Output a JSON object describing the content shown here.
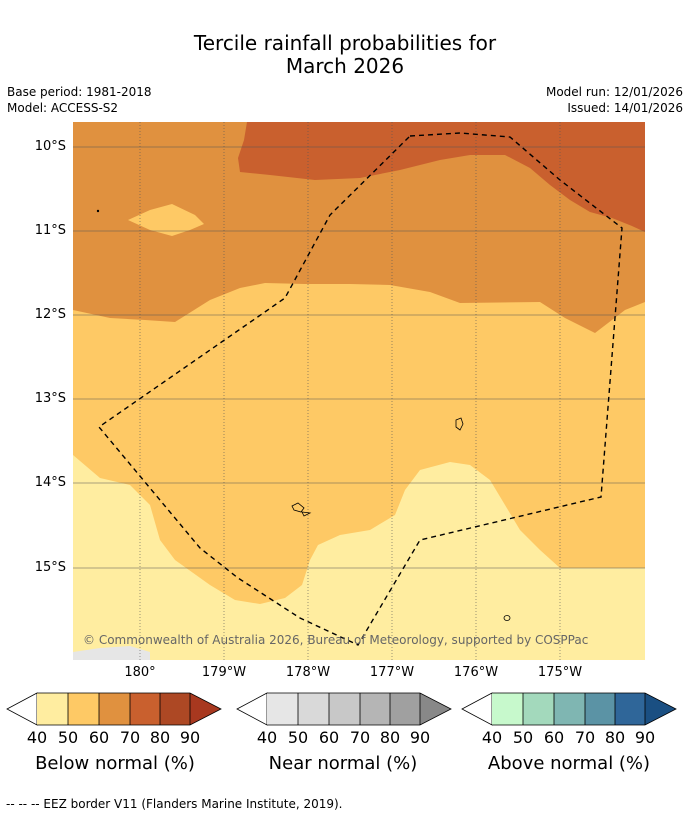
{
  "title_line1": "Tercile rainfall probabilities for",
  "title_line2": "March 2026",
  "base_period": "Base period: 1981-2018",
  "model": "Model: ACCESS-S2",
  "model_run": "Model run: 12/01/2026",
  "issued": "Issued: 14/01/2026",
  "lat_labels": [
    "10°S",
    "11°S",
    "12°S",
    "13°S",
    "14°S",
    "15°S"
  ],
  "lon_labels": [
    "180°",
    "179°W",
    "178°W",
    "177°W",
    "176°W",
    "175°W"
  ],
  "copyright": "© Commonwealth of Australia 2026, Bureau of Meteorology, supported by COSPPac",
  "colorbars": [
    {
      "title": "Below normal (%)",
      "ticks": [
        "40",
        "50",
        "60",
        "70",
        "80",
        "90"
      ],
      "colors": [
        "#ffffff",
        "#ffeda0",
        "#fec965",
        "#e0913f",
        "#c9602e",
        "#ad4824",
        "#a8381f"
      ]
    },
    {
      "title": "Near normal (%)",
      "ticks": [
        "40",
        "50",
        "60",
        "70",
        "80",
        "90"
      ],
      "colors": [
        "#ffffff",
        "#e6e6e6",
        "#d9d9d9",
        "#c8c8c8",
        "#b5b5b5",
        "#a0a0a0",
        "#888888"
      ]
    },
    {
      "title": "Above normal (%)",
      "ticks": [
        "40",
        "50",
        "60",
        "70",
        "80",
        "90"
      ],
      "colors": [
        "#ffffff",
        "#c7f9cc",
        "#a3d9bc",
        "#7fb6b2",
        "#5b93a5",
        "#2f6699",
        "#1a4f82"
      ]
    }
  ],
  "footnote": "--  --  -- EEZ border V11 (Flanders Marine Institute, 2019).",
  "map_colors": {
    "below_40_50": "#ffeda0",
    "below_50_60": "#fec965",
    "below_60_70": "#e0913f",
    "below_70_80": "#c9602e",
    "near_40_50": "#e6e6e6"
  }
}
